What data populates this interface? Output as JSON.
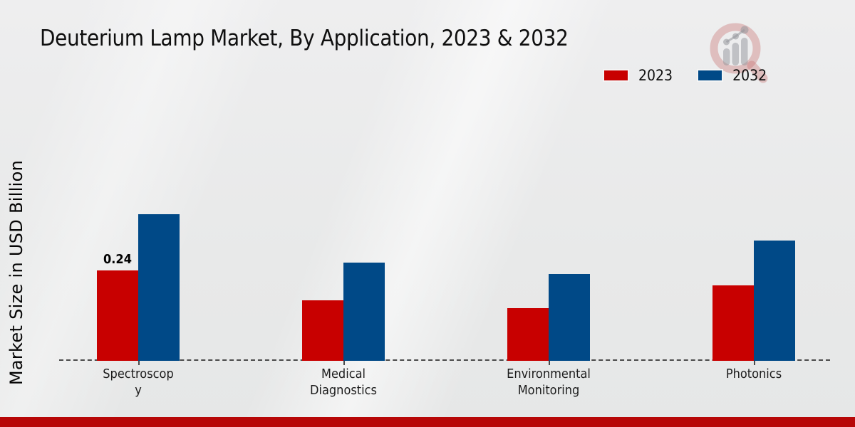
{
  "page": {
    "background_color": "#e9eaea",
    "footer_stripe_color": "#b70707"
  },
  "watermark": {
    "icon": "magnifier-bar-chart-logo",
    "ring_color": "rgba(201,112,112,0.38)",
    "bar_color": "rgba(148,150,155,0.5)"
  },
  "chart_data": {
    "type": "bar",
    "title": "Deuterium Lamp Market, By Application, 2023 & 2032",
    "ylabel": "Market Size in USD Billion",
    "xlabel": "",
    "categories": [
      "Spectroscopy",
      "Medical Diagnostics",
      "Environmental Monitoring",
      "Photonics"
    ],
    "category_display": [
      "Spectroscop\ny",
      "Medical\nDiagnostics",
      "Environmental\nMonitoring",
      "Photonics"
    ],
    "series": [
      {
        "name": "2023",
        "color": "#c80000",
        "values": [
          0.24,
          0.16,
          0.14,
          0.2
        ]
      },
      {
        "name": "2032",
        "color": "#004987",
        "values": [
          0.39,
          0.26,
          0.23,
          0.32
        ]
      }
    ],
    "value_labels": [
      {
        "series": "2023",
        "category": "Spectroscopy",
        "text": "0.24"
      }
    ],
    "ylim": [
      0,
      0.45
    ],
    "grid": false,
    "legend_position": "top-right",
    "baseline_style": "dashed",
    "axis_visible": false
  }
}
